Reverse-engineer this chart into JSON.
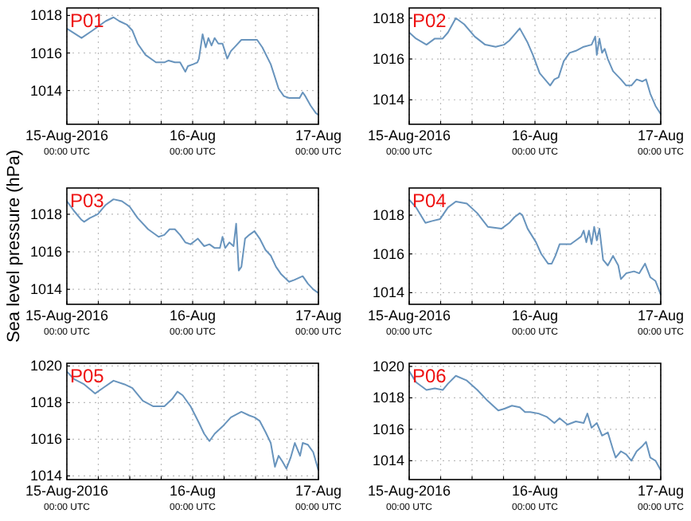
{
  "chart_data": [
    {
      "type": "line",
      "title": "P01",
      "x": [
        "2016-08-15T00:00",
        "2016-08-15T02:48",
        "2016-08-15T04:54",
        "2016-08-15T07:24",
        "2016-08-15T08:54",
        "2016-08-15T10:00",
        "2016-08-15T11:30",
        "2016-08-15T12:30",
        "2016-08-15T13:30",
        "2016-08-15T15:00",
        "2016-08-15T17:00",
        "2016-08-15T18:36",
        "2016-08-15T19:24",
        "2016-08-15T20:36",
        "2016-08-15T21:36",
        "2016-08-15T22:36",
        "2016-08-15T23:06",
        "2016-08-16T00:06",
        "2016-08-16T00:54",
        "2016-08-16T01:12",
        "2016-08-16T01:54",
        "2016-08-16T02:30",
        "2016-08-16T03:00",
        "2016-08-16T03:36",
        "2016-08-16T04:12",
        "2016-08-16T04:54",
        "2016-08-16T05:42",
        "2016-08-16T06:36",
        "2016-08-16T07:18",
        "2016-08-16T08:18",
        "2016-08-16T09:18",
        "2016-08-16T10:48",
        "2016-08-16T12:18",
        "2016-08-16T13:18",
        "2016-08-16T14:54",
        "2016-08-16T16:24",
        "2016-08-16T17:24",
        "2016-08-16T18:24",
        "2016-08-16T20:24",
        "2016-08-16T21:00",
        "2016-08-16T21:30",
        "2016-08-16T22:30",
        "2016-08-16T23:30",
        "2016-08-17T00:00"
      ],
      "series": [
        {
          "color": "#6894bd",
          "values": [
            1017.3,
            1016.8,
            1017.2,
            1017.7,
            1017.9,
            1017.7,
            1017.5,
            1017.2,
            1016.5,
            1015.9,
            1015.5,
            1015.5,
            1015.6,
            1015.5,
            1015.5,
            1015.0,
            1015.3,
            1015.4,
            1015.5,
            1015.7,
            1017.0,
            1016.3,
            1016.8,
            1016.4,
            1016.8,
            1016.5,
            1016.5,
            1015.7,
            1016.1,
            1016.4,
            1016.7,
            1016.7,
            1016.7,
            1016.3,
            1015.4,
            1014.1,
            1013.7,
            1013.6,
            1013.6,
            1013.9,
            1013.7,
            1013.2,
            1012.8,
            1012.7
          ]
        }
      ],
      "xlim": [
        "2016-08-15T00:00",
        "2016-08-17T00:00"
      ],
      "ylim": [
        1012.2,
        1018.4
      ],
      "yticks": [
        1014,
        1016,
        1018
      ],
      "grid": true,
      "xticks": [
        {
          "value": "2016-08-15T00:00",
          "label": "15-Aug-2016\n00:00 UTC"
        },
        {
          "value": "2016-08-15T06:00",
          "label": null
        },
        {
          "value": "2016-08-15T12:00",
          "label": null
        },
        {
          "value": "2016-08-15T18:00",
          "label": null
        },
        {
          "value": "2016-08-16T00:00",
          "label": "16-Aug\n00:00 UTC"
        },
        {
          "value": "2016-08-16T06:00",
          "label": null
        },
        {
          "value": "2016-08-16T12:00",
          "label": null
        },
        {
          "value": "2016-08-16T18:00",
          "label": null
        },
        {
          "value": "2016-08-17T00:00",
          "label": "17-Aug\n00:00 UTC"
        }
      ]
    },
    {
      "type": "line",
      "title": "P02",
      "x": [
        "2016-08-15T00:00",
        "2016-08-15T01:18",
        "2016-08-15T03:18",
        "2016-08-15T04:54",
        "2016-08-15T06:24",
        "2016-08-15T07:24",
        "2016-08-15T08:54",
        "2016-08-15T10:30",
        "2016-08-15T12:30",
        "2016-08-15T14:30",
        "2016-08-15T16:30",
        "2016-08-15T18:06",
        "2016-08-15T19:06",
        "2016-08-15T20:06",
        "2016-08-15T21:06",
        "2016-08-15T22:36",
        "2016-08-15T23:36",
        "2016-08-16T00:54",
        "2016-08-16T01:54",
        "2016-08-16T02:54",
        "2016-08-16T03:42",
        "2016-08-16T04:30",
        "2016-08-16T05:30",
        "2016-08-16T06:36",
        "2016-08-16T07:48",
        "2016-08-16T09:18",
        "2016-08-16T10:48",
        "2016-08-16T11:30",
        "2016-08-16T11:48",
        "2016-08-16T12:18",
        "2016-08-16T12:48",
        "2016-08-16T13:18",
        "2016-08-16T13:54",
        "2016-08-16T14:54",
        "2016-08-16T16:24",
        "2016-08-16T17:24",
        "2016-08-16T18:24",
        "2016-08-16T19:24",
        "2016-08-16T20:30",
        "2016-08-16T21:12",
        "2016-08-16T22:00",
        "2016-08-16T23:00",
        "2016-08-17T00:00"
      ],
      "series": [
        {
          "color": "#6894bd",
          "values": [
            1017.3,
            1017.0,
            1016.7,
            1017.0,
            1017.0,
            1017.3,
            1018.0,
            1017.7,
            1017.1,
            1016.7,
            1016.6,
            1016.7,
            1016.9,
            1017.2,
            1017.5,
            1016.8,
            1016.2,
            1015.3,
            1015.0,
            1014.7,
            1015.0,
            1015.1,
            1015.9,
            1016.3,
            1016.4,
            1016.6,
            1016.7,
            1017.1,
            1016.2,
            1017.0,
            1016.3,
            1016.5,
            1016.0,
            1015.4,
            1015.0,
            1014.7,
            1014.7,
            1015.0,
            1014.9,
            1015.0,
            1014.3,
            1013.7,
            1013.3
          ]
        }
      ],
      "xlim": [
        "2016-08-15T00:00",
        "2016-08-17T00:00"
      ],
      "ylim": [
        1012.8,
        1018.5
      ],
      "yticks": [
        1014,
        1016,
        1018
      ],
      "grid": true,
      "xticks": [
        {
          "value": "2016-08-15T00:00",
          "label": "15-Aug-2016\n00:00 UTC"
        },
        {
          "value": "2016-08-15T06:00",
          "label": null
        },
        {
          "value": "2016-08-15T12:00",
          "label": null
        },
        {
          "value": "2016-08-15T18:00",
          "label": null
        },
        {
          "value": "2016-08-16T00:00",
          "label": "16-Aug\n00:00 UTC"
        },
        {
          "value": "2016-08-16T06:00",
          "label": null
        },
        {
          "value": "2016-08-16T12:00",
          "label": null
        },
        {
          "value": "2016-08-16T18:00",
          "label": null
        },
        {
          "value": "2016-08-17T00:00",
          "label": "17-Aug\n00:00 UTC"
        }
      ]
    },
    {
      "type": "line",
      "title": "P03",
      "ylabel": "Sea level pressure (hPa)",
      "x": [
        "2016-08-15T00:00",
        "2016-08-15T01:18",
        "2016-08-15T02:48",
        "2016-08-15T03:18",
        "2016-08-15T04:24",
        "2016-08-15T05:54",
        "2016-08-15T07:24",
        "2016-08-15T08:54",
        "2016-08-15T10:30",
        "2016-08-15T12:00",
        "2016-08-15T13:30",
        "2016-08-15T15:30",
        "2016-08-15T17:30",
        "2016-08-15T18:36",
        "2016-08-15T19:36",
        "2016-08-15T20:36",
        "2016-08-15T21:36",
        "2016-08-15T22:36",
        "2016-08-15T23:36",
        "2016-08-16T01:00",
        "2016-08-16T02:12",
        "2016-08-16T03:12",
        "2016-08-16T04:12",
        "2016-08-16T05:12",
        "2016-08-16T05:42",
        "2016-08-16T06:12",
        "2016-08-16T07:00",
        "2016-08-16T07:48",
        "2016-08-16T08:18",
        "2016-08-16T08:48",
        "2016-08-16T09:18",
        "2016-08-16T10:00",
        "2016-08-16T10:48",
        "2016-08-16T11:48",
        "2016-08-16T12:48",
        "2016-08-16T13:54",
        "2016-08-16T14:54",
        "2016-08-16T15:54",
        "2016-08-16T16:54",
        "2016-08-16T18:24",
        "2016-08-16T19:24",
        "2016-08-16T21:00",
        "2016-08-16T22:00",
        "2016-08-16T23:00",
        "2016-08-17T00:00"
      ],
      "series": [
        {
          "color": "#6894bd",
          "values": [
            1018.7,
            1018.2,
            1017.7,
            1017.6,
            1017.8,
            1018.0,
            1018.5,
            1018.8,
            1018.7,
            1018.4,
            1017.8,
            1017.2,
            1016.8,
            1016.9,
            1017.2,
            1017.2,
            1016.9,
            1016.5,
            1016.4,
            1016.7,
            1016.3,
            1016.4,
            1016.2,
            1016.2,
            1016.8,
            1016.2,
            1016.5,
            1016.3,
            1017.5,
            1015.0,
            1015.2,
            1016.7,
            1016.9,
            1017.1,
            1016.7,
            1016.1,
            1015.8,
            1015.2,
            1014.8,
            1014.4,
            1014.5,
            1014.7,
            1014.3,
            1014.0,
            1013.8
          ]
        }
      ],
      "xlim": [
        "2016-08-15T00:00",
        "2016-08-17T00:00"
      ],
      "ylim": [
        1013.2,
        1019.4
      ],
      "yticks": [
        1014,
        1016,
        1018
      ],
      "grid": true,
      "xticks": [
        {
          "value": "2016-08-15T00:00",
          "label": "15-Aug-2016\n00:00 UTC"
        },
        {
          "value": "2016-08-15T06:00",
          "label": null
        },
        {
          "value": "2016-08-15T12:00",
          "label": null
        },
        {
          "value": "2016-08-15T18:00",
          "label": null
        },
        {
          "value": "2016-08-16T00:00",
          "label": "16-Aug\n00:00 UTC"
        },
        {
          "value": "2016-08-16T06:00",
          "label": null
        },
        {
          "value": "2016-08-16T12:00",
          "label": null
        },
        {
          "value": "2016-08-16T18:00",
          "label": null
        },
        {
          "value": "2016-08-17T00:00",
          "label": "17-Aug\n00:00 UTC"
        }
      ]
    },
    {
      "type": "line",
      "title": "P04",
      "x": [
        "2016-08-15T00:00",
        "2016-08-15T01:18",
        "2016-08-15T03:06",
        "2016-08-15T04:24",
        "2016-08-15T05:54",
        "2016-08-15T07:24",
        "2016-08-15T08:54",
        "2016-08-15T11:00",
        "2016-08-15T13:00",
        "2016-08-15T15:00",
        "2016-08-15T17:36",
        "2016-08-15T19:06",
        "2016-08-15T20:06",
        "2016-08-15T21:06",
        "2016-08-15T21:36",
        "2016-08-15T22:36",
        "2016-08-16T00:12",
        "2016-08-16T01:12",
        "2016-08-16T02:30",
        "2016-08-16T03:12",
        "2016-08-16T03:54",
        "2016-08-16T04:42",
        "2016-08-16T05:42",
        "2016-08-16T06:48",
        "2016-08-16T07:48",
        "2016-08-16T08:48",
        "2016-08-16T09:18",
        "2016-08-16T09:48",
        "2016-08-16T10:18",
        "2016-08-16T10:48",
        "2016-08-16T11:18",
        "2016-08-16T11:48",
        "2016-08-16T12:18",
        "2016-08-16T13:00",
        "2016-08-16T13:54",
        "2016-08-16T14:54",
        "2016-08-16T15:54",
        "2016-08-16T16:24",
        "2016-08-16T17:24",
        "2016-08-16T18:54",
        "2016-08-16T19:54",
        "2016-08-16T21:00",
        "2016-08-16T22:00",
        "2016-08-16T23:00",
        "2016-08-17T00:00"
      ],
      "series": [
        {
          "color": "#6894bd",
          "values": [
            1018.8,
            1018.4,
            1017.6,
            1017.7,
            1017.8,
            1018.4,
            1018.7,
            1018.6,
            1018.1,
            1017.4,
            1017.3,
            1017.6,
            1017.9,
            1018.1,
            1018.0,
            1017.3,
            1016.6,
            1016.0,
            1015.5,
            1015.5,
            1015.9,
            1016.5,
            1016.5,
            1016.5,
            1016.7,
            1016.9,
            1017.2,
            1016.6,
            1017.2,
            1016.5,
            1017.4,
            1016.7,
            1017.3,
            1015.7,
            1015.4,
            1015.9,
            1015.4,
            1014.7,
            1015.0,
            1015.1,
            1015.0,
            1015.5,
            1014.8,
            1014.6,
            1013.9
          ]
        }
      ],
      "xlim": [
        "2016-08-15T00:00",
        "2016-08-17T00:00"
      ],
      "ylim": [
        1013.4,
        1019.4
      ],
      "yticks": [
        1014,
        1016,
        1018
      ],
      "grid": true,
      "xticks": [
        {
          "value": "2016-08-15T00:00",
          "label": "15-Aug-2016\n00:00 UTC"
        },
        {
          "value": "2016-08-15T06:00",
          "label": null
        },
        {
          "value": "2016-08-15T12:00",
          "label": null
        },
        {
          "value": "2016-08-15T18:00",
          "label": null
        },
        {
          "value": "2016-08-16T00:00",
          "label": "16-Aug\n00:00 UTC"
        },
        {
          "value": "2016-08-16T06:00",
          "label": null
        },
        {
          "value": "2016-08-16T12:00",
          "label": null
        },
        {
          "value": "2016-08-16T18:00",
          "label": null
        },
        {
          "value": "2016-08-17T00:00",
          "label": "17-Aug\n00:00 UTC"
        }
      ]
    },
    {
      "type": "line",
      "title": "P05",
      "x": [
        "2016-08-15T00:00",
        "2016-08-15T01:18",
        "2016-08-15T03:18",
        "2016-08-15T05:24",
        "2016-08-15T06:54",
        "2016-08-15T08:54",
        "2016-08-15T11:00",
        "2016-08-15T12:30",
        "2016-08-15T14:30",
        "2016-08-15T16:30",
        "2016-08-15T18:36",
        "2016-08-15T20:06",
        "2016-08-15T21:06",
        "2016-08-15T22:06",
        "2016-08-15T23:36",
        "2016-08-16T01:12",
        "2016-08-16T02:12",
        "2016-08-16T03:12",
        "2016-08-16T04:12",
        "2016-08-16T05:42",
        "2016-08-16T07:18",
        "2016-08-16T09:18",
        "2016-08-16T10:48",
        "2016-08-16T11:48",
        "2016-08-16T12:48",
        "2016-08-16T13:54",
        "2016-08-16T14:54",
        "2016-08-16T15:42",
        "2016-08-16T16:24",
        "2016-08-16T17:06",
        "2016-08-16T17:54",
        "2016-08-16T18:42",
        "2016-08-16T19:30",
        "2016-08-16T20:30",
        "2016-08-16T21:00",
        "2016-08-16T22:00",
        "2016-08-16T23:00",
        "2016-08-17T00:00"
      ],
      "series": [
        {
          "color": "#6894bd",
          "values": [
            1019.7,
            1019.3,
            1019.0,
            1018.5,
            1018.8,
            1019.2,
            1019.0,
            1018.8,
            1018.1,
            1017.8,
            1017.8,
            1018.2,
            1018.6,
            1018.4,
            1017.8,
            1016.9,
            1016.3,
            1015.9,
            1016.3,
            1016.7,
            1017.2,
            1017.5,
            1017.3,
            1017.2,
            1017.0,
            1016.4,
            1015.8,
            1014.5,
            1015.1,
            1014.8,
            1014.4,
            1015.0,
            1015.8,
            1015.1,
            1015.8,
            1015.7,
            1015.3,
            1014.3
          ]
        }
      ],
      "xlim": [
        "2016-08-15T00:00",
        "2016-08-17T00:00"
      ],
      "ylim": [
        1013.8,
        1020.15
      ],
      "yticks": [
        1014,
        1016,
        1018,
        1020
      ],
      "grid": true,
      "xticks": [
        {
          "value": "2016-08-15T00:00",
          "label": "15-Aug-2016\n00:00 UTC"
        },
        {
          "value": "2016-08-15T06:00",
          "label": null
        },
        {
          "value": "2016-08-15T12:00",
          "label": null
        },
        {
          "value": "2016-08-15T18:00",
          "label": null
        },
        {
          "value": "2016-08-16T00:00",
          "label": "16-Aug\n00:00 UTC"
        },
        {
          "value": "2016-08-16T06:00",
          "label": null
        },
        {
          "value": "2016-08-16T12:00",
          "label": null
        },
        {
          "value": "2016-08-16T18:00",
          "label": null
        },
        {
          "value": "2016-08-17T00:00",
          "label": "17-Aug\n00:00 UTC"
        }
      ]
    },
    {
      "type": "line",
      "title": "P06",
      "x": [
        "2016-08-15T00:00",
        "2016-08-15T01:18",
        "2016-08-15T03:18",
        "2016-08-15T04:54",
        "2016-08-15T06:24",
        "2016-08-15T07:24",
        "2016-08-15T08:54",
        "2016-08-15T11:00",
        "2016-08-15T13:00",
        "2016-08-15T15:00",
        "2016-08-15T17:00",
        "2016-08-15T18:06",
        "2016-08-15T19:36",
        "2016-08-15T21:06",
        "2016-08-15T22:06",
        "2016-08-15T23:06",
        "2016-08-16T00:42",
        "2016-08-16T02:12",
        "2016-08-16T03:42",
        "2016-08-16T04:42",
        "2016-08-16T06:12",
        "2016-08-16T07:48",
        "2016-08-16T09:18",
        "2016-08-16T10:00",
        "2016-08-16T10:48",
        "2016-08-16T11:48",
        "2016-08-16T12:48",
        "2016-08-16T13:54",
        "2016-08-16T14:54",
        "2016-08-16T15:24",
        "2016-08-16T16:24",
        "2016-08-16T17:24",
        "2016-08-16T18:24",
        "2016-08-16T19:24",
        "2016-08-16T20:24",
        "2016-08-16T21:12",
        "2016-08-16T22:00",
        "2016-08-16T23:00",
        "2016-08-17T00:00"
      ],
      "series": [
        {
          "color": "#6894bd",
          "values": [
            1019.7,
            1019.0,
            1018.5,
            1018.6,
            1018.5,
            1018.9,
            1019.4,
            1019.1,
            1018.5,
            1017.8,
            1017.2,
            1017.3,
            1017.5,
            1017.4,
            1017.1,
            1017.1,
            1017.0,
            1016.8,
            1016.4,
            1016.7,
            1016.3,
            1016.5,
            1016.4,
            1017.0,
            1016.1,
            1016.4,
            1015.6,
            1015.8,
            1014.7,
            1014.2,
            1014.6,
            1014.4,
            1014.0,
            1014.6,
            1014.9,
            1015.2,
            1014.2,
            1014.0,
            1013.4
          ]
        }
      ],
      "xlim": [
        "2016-08-15T00:00",
        "2016-08-17T00:00"
      ],
      "ylim": [
        1012.8,
        1020.2
      ],
      "yticks": [
        1014,
        1016,
        1018,
        1020
      ],
      "grid": true,
      "xticks": [
        {
          "value": "2016-08-15T00:00",
          "label": "15-Aug-2016\n00:00 UTC"
        },
        {
          "value": "2016-08-15T06:00",
          "label": null
        },
        {
          "value": "2016-08-15T12:00",
          "label": null
        },
        {
          "value": "2016-08-15T18:00",
          "label": null
        },
        {
          "value": "2016-08-16T00:00",
          "label": "16-Aug\n00:00 UTC"
        },
        {
          "value": "2016-08-16T06:00",
          "label": null
        },
        {
          "value": "2016-08-16T12:00",
          "label": null
        },
        {
          "value": "2016-08-16T18:00",
          "label": null
        },
        {
          "value": "2016-08-17T00:00",
          "label": "17-Aug\n00:00 UTC"
        }
      ]
    }
  ]
}
